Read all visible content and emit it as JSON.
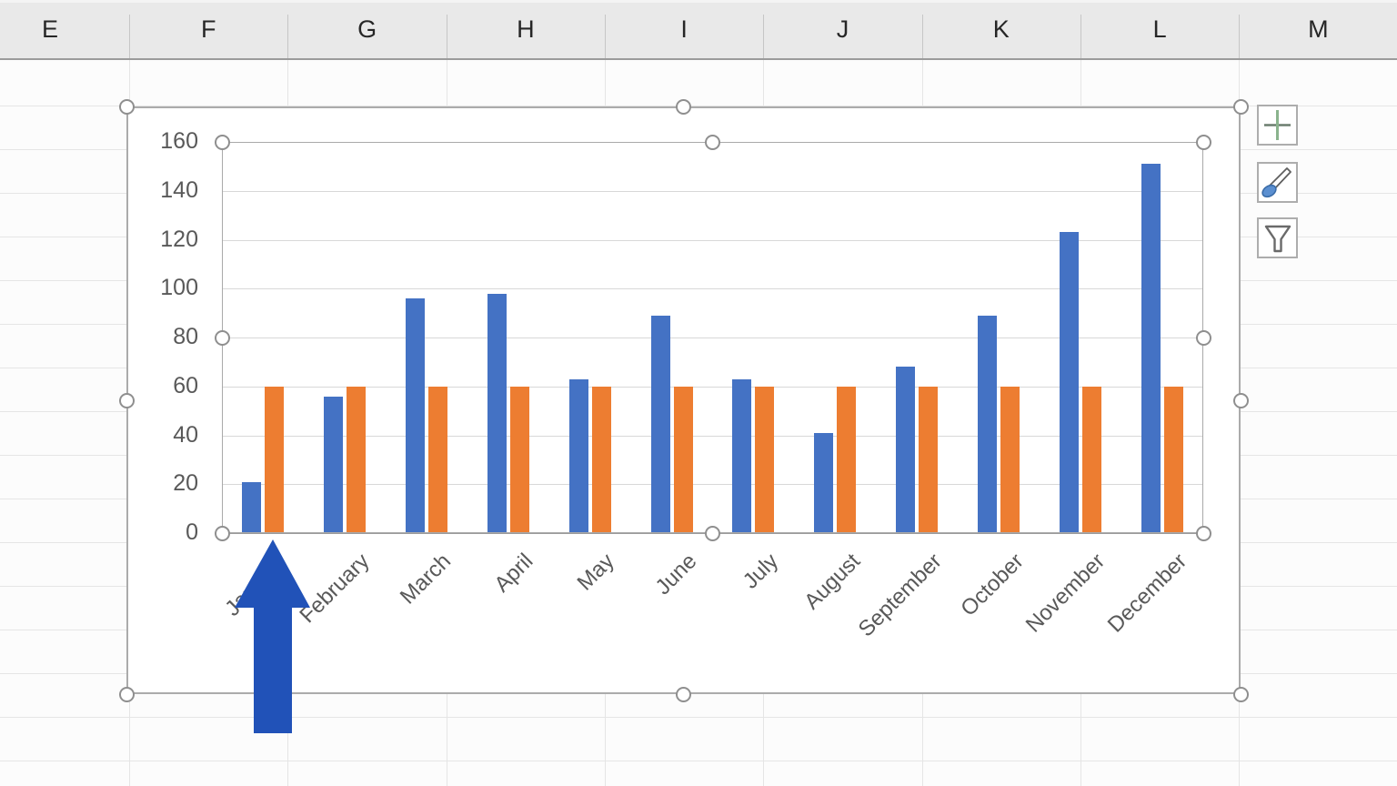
{
  "spreadsheet": {
    "column_headers": [
      "E",
      "F",
      "G",
      "H",
      "I",
      "J",
      "K",
      "L",
      "M"
    ]
  },
  "chart_data": {
    "type": "bar",
    "categories": [
      "January",
      "February",
      "March",
      "April",
      "May",
      "June",
      "July",
      "August",
      "September",
      "October",
      "November",
      "December"
    ],
    "series": [
      {
        "name": "series-1-blue",
        "color": "#4472C4",
        "values": [
          21,
          56,
          96,
          98,
          63,
          89,
          63,
          41,
          68,
          89,
          123,
          151
        ]
      },
      {
        "name": "series-2-orange",
        "color": "#ED7D31",
        "values": [
          60,
          60,
          60,
          60,
          60,
          60,
          60,
          60,
          60,
          60,
          60,
          60
        ]
      }
    ],
    "title": "",
    "xlabel": "",
    "ylabel": "",
    "ylim": [
      0,
      160
    ],
    "yticks": [
      0,
      20,
      40,
      60,
      80,
      100,
      120,
      140,
      160
    ],
    "grid": true,
    "legend": "none"
  },
  "chart_tools": [
    {
      "icon": "plus-icon",
      "purpose": "chart-elements"
    },
    {
      "icon": "brush-icon",
      "purpose": "chart-styles"
    },
    {
      "icon": "funnel-icon",
      "purpose": "chart-filters"
    }
  ],
  "annotation": {
    "shape": "up-arrow",
    "color": "#2152B8"
  },
  "colors": {
    "series_blue": "#4472C4",
    "series_orange": "#ED7D31",
    "axis_text": "#595959",
    "gridline": "#d8d8d8",
    "selection_handle_border": "#8f8f8f",
    "chart_border": "#ababab"
  }
}
